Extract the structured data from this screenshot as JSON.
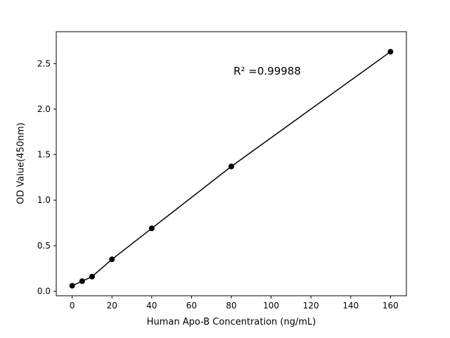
{
  "figure": {
    "background": "#ffffff"
  },
  "chart_data": {
    "type": "scatter",
    "title": "",
    "xlabel": "Human Apo-B Concentration (ng/mL)",
    "ylabel": "OD Value(450nm)",
    "annotation": "R² =0.99988",
    "x": [
      0,
      5,
      10,
      20,
      40,
      80,
      160
    ],
    "y": [
      0.06,
      0.11,
      0.16,
      0.35,
      0.69,
      1.37,
      2.63
    ],
    "line_through_points": true,
    "marker": "circle",
    "marker_color": "#000000",
    "line_color": "#000000",
    "xticks": [
      0,
      20,
      40,
      60,
      80,
      100,
      120,
      140,
      160
    ],
    "yticks": [
      0.0,
      0.5,
      1.0,
      1.5,
      2.0,
      2.5
    ],
    "xlim": [
      -8,
      168
    ],
    "ylim": [
      -0.05,
      2.85
    ],
    "grid": false,
    "legend_position": "none"
  }
}
